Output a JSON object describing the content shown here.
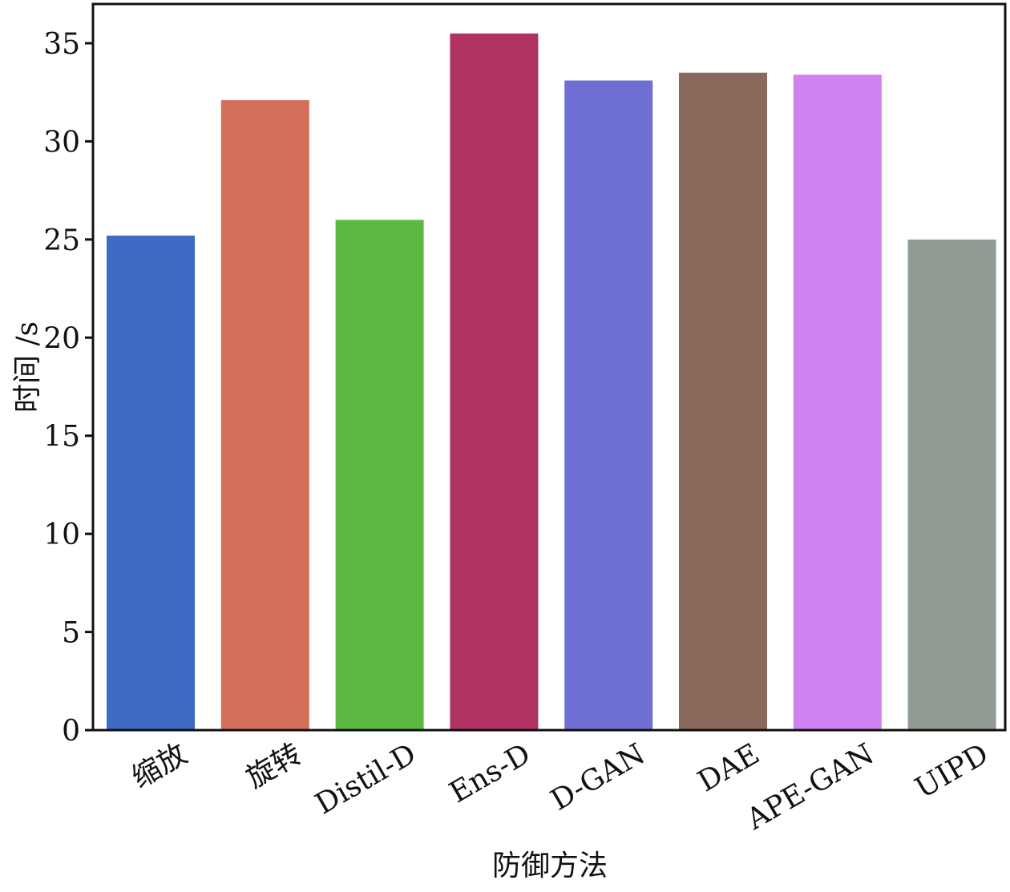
{
  "chart_data": {
    "type": "bar",
    "title": "",
    "xlabel": "防御方法",
    "ylabel": "时间 /s",
    "ylim": [
      0,
      37
    ],
    "yticks": [
      0,
      5,
      10,
      15,
      20,
      25,
      30,
      35
    ],
    "grid": false,
    "legend": "none",
    "categories": [
      "缩放",
      "旋转",
      "Distil-D",
      "Ens-D",
      "D-GAN",
      "DAE",
      "APE-GAN",
      "UIPD"
    ],
    "values": [
      25.2,
      32.1,
      26.0,
      35.5,
      33.1,
      33.5,
      33.4,
      25.0
    ],
    "colors": [
      "#3d6bc4",
      "#d4705a",
      "#5db843",
      "#b03263",
      "#6f6fd3",
      "#8a6a5a",
      "#d082f0",
      "#909c93"
    ]
  }
}
